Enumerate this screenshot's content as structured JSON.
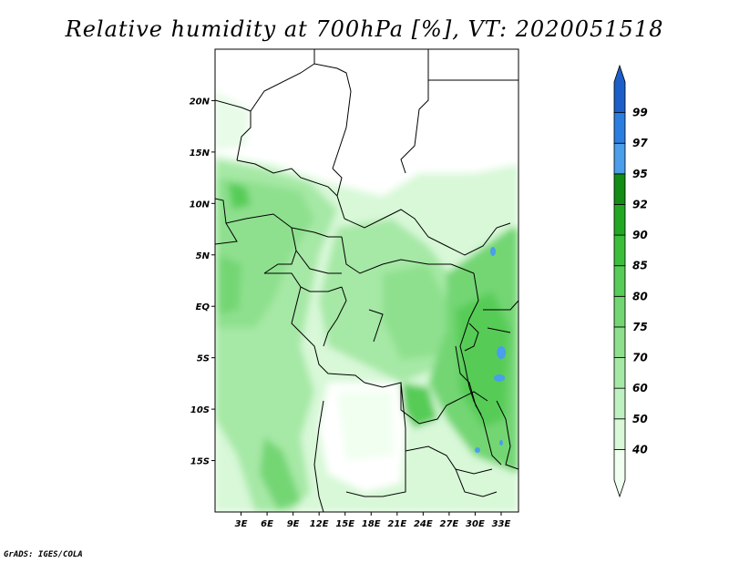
{
  "title": "Relative humidity at 700hPa [%], VT: 2020051518",
  "footer": "GrADS: IGES/COLA",
  "lat_labels": [
    "20N",
    "15N",
    "10N",
    "5N",
    "EQ",
    "5S",
    "10S",
    "15S"
  ],
  "lat_values": [
    20,
    15,
    10,
    5,
    0,
    -5,
    -10,
    -15
  ],
  "lon_labels": [
    "3E",
    "6E",
    "9E",
    "12E",
    "15E",
    "18E",
    "21E",
    "24E",
    "27E",
    "30E",
    "33E"
  ],
  "lon_values": [
    3,
    6,
    9,
    12,
    15,
    18,
    21,
    24,
    27,
    30,
    33
  ],
  "map_extent": {
    "lon": [
      0,
      35
    ],
    "lat": [
      -20,
      25
    ]
  },
  "colorbar": {
    "labels": [
      "40",
      "50",
      "60",
      "70",
      "75",
      "80",
      "85",
      "90",
      "92",
      "95",
      "97",
      "99"
    ],
    "levels": [
      40,
      50,
      60,
      70,
      75,
      80,
      85,
      90,
      92,
      95,
      97,
      99
    ],
    "colors": [
      "#f0fff0",
      "#d8f8d8",
      "#bff0bf",
      "#a6e8a6",
      "#8ee08e",
      "#73d673",
      "#57cc57",
      "#3bbf3b",
      "#22a822",
      "#138d13",
      "#4a9eea",
      "#2a7ee0",
      "#1c5fc8"
    ]
  }
}
